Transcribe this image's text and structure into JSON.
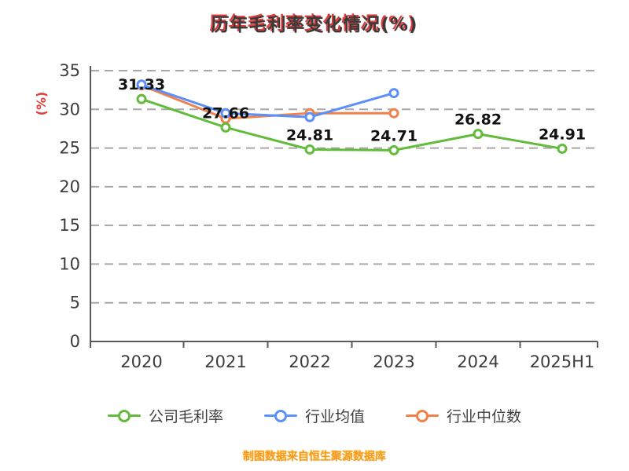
{
  "title": "历年毛利率变化情况(%)",
  "footer": "制图数据来自恒生聚源数据库",
  "chart_data": {
    "type": "line",
    "title": "历年毛利率变化情况(%)",
    "ylabel": "(%)",
    "ylabel_color": "#e03c3c",
    "categories": [
      "2020",
      "2021",
      "2022",
      "2023",
      "2024",
      "2025H1"
    ],
    "series": [
      {
        "name": "公司毛利率",
        "color": "#63bb3c",
        "values": [
          31.33,
          27.66,
          24.81,
          24.71,
          26.82,
          24.91
        ],
        "show_labels": true
      },
      {
        "name": "行业均值",
        "color": "#5b8ff9",
        "values": [
          33.2,
          29.5,
          29.0,
          32.1,
          null,
          null
        ],
        "show_labels": false
      },
      {
        "name": "行业中位数",
        "color": "#f0804c",
        "values": [
          33.1,
          28.8,
          29.5,
          29.5,
          null,
          null
        ],
        "show_labels": false
      }
    ],
    "ylim": [
      0,
      35
    ],
    "yticks": [
      0,
      5,
      10,
      15,
      20,
      25,
      30,
      35
    ],
    "grid": "horizontal-dashed",
    "grid_color": "#a8a8a8",
    "axis_color": "#5a5a5a",
    "legend_position": "bottom",
    "source_note": "制图数据来自恒生聚源数据库"
  }
}
